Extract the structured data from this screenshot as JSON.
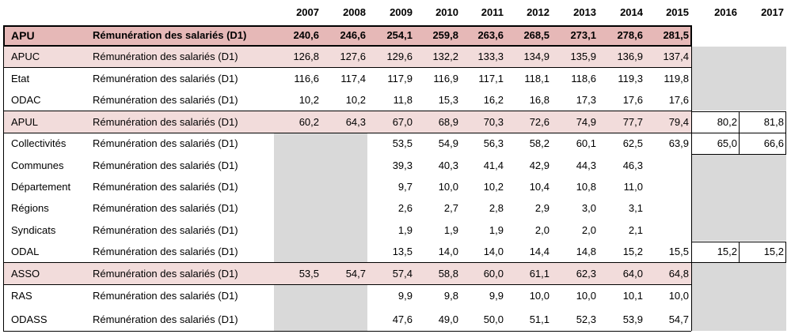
{
  "years": [
    "2007",
    "2008",
    "2009",
    "2010",
    "2011",
    "2012",
    "2013",
    "2014",
    "2015",
    "2016",
    "2017"
  ],
  "colors": {
    "apu_fill": "#e6b8b7",
    "section_fill": "#f2dcdb",
    "grey_fill": "#d9d9d9",
    "border": "#000000"
  },
  "rows": [
    {
      "entity": "APU",
      "label": "Rémunération des salariés (D1)",
      "values": [
        "240,6",
        "246,6",
        "254,1",
        "259,8",
        "263,6",
        "268,5",
        "273,1",
        "278,6",
        "281,5",
        "",
        ""
      ]
    },
    {
      "entity": "APUC",
      "label": "Rémunération des salariés (D1)",
      "values": [
        "126,8",
        "127,6",
        "129,6",
        "132,2",
        "133,3",
        "134,9",
        "135,9",
        "136,9",
        "137,4",
        "",
        ""
      ]
    },
    {
      "entity": "Etat",
      "label": "Rémunération des salariés (D1)",
      "values": [
        "116,6",
        "117,4",
        "117,9",
        "116,9",
        "117,1",
        "118,1",
        "118,6",
        "119,3",
        "119,8",
        "",
        ""
      ]
    },
    {
      "entity": "ODAC",
      "label": "Rémunération des salariés (D1)",
      "values": [
        "10,2",
        "10,2",
        "11,8",
        "15,3",
        "16,2",
        "16,8",
        "17,3",
        "17,6",
        "17,6",
        "",
        ""
      ]
    },
    {
      "entity": "APUL",
      "label": "Rémunération des salariés (D1)",
      "values": [
        "60,2",
        "64,3",
        "67,0",
        "68,9",
        "70,3",
        "72,6",
        "74,9",
        "77,7",
        "79,4",
        "80,2",
        "81,8"
      ]
    },
    {
      "entity": "Collectivités",
      "label": "Rémunération des salariés (D1)",
      "values": [
        "",
        "",
        "53,5",
        "54,9",
        "56,3",
        "58,2",
        "60,1",
        "62,5",
        "63,9",
        "65,0",
        "66,6"
      ]
    },
    {
      "entity": "Communes",
      "label": "Rémunération des salariés (D1)",
      "values": [
        "",
        "",
        "39,3",
        "40,3",
        "41,4",
        "42,9",
        "44,3",
        "46,3",
        "",
        "",
        ""
      ]
    },
    {
      "entity": "Département",
      "label": "Rémunération des salariés (D1)",
      "values": [
        "",
        "",
        "9,7",
        "10,0",
        "10,2",
        "10,4",
        "10,8",
        "11,0",
        "",
        "",
        ""
      ]
    },
    {
      "entity": "Régions",
      "label": "Rémunération des salariés (D1)",
      "values": [
        "",
        "",
        "2,6",
        "2,7",
        "2,8",
        "2,9",
        "3,0",
        "3,1",
        "",
        "",
        ""
      ]
    },
    {
      "entity": "Syndicats",
      "label": "Rémunération des salariés (D1)",
      "values": [
        "",
        "",
        "1,9",
        "1,9",
        "1,9",
        "2,0",
        "2,0",
        "2,1",
        "",
        "",
        ""
      ]
    },
    {
      "entity": "ODAL",
      "label": "Rémunération des salariés (D1)",
      "values": [
        "",
        "",
        "13,5",
        "14,0",
        "14,0",
        "14,4",
        "14,8",
        "15,2",
        "15,5",
        "15,2",
        "15,2"
      ]
    },
    {
      "entity": "ASSO",
      "label": "Rémunération des salariés (D1)",
      "values": [
        "53,5",
        "54,7",
        "57,4",
        "58,8",
        "60,0",
        "61,1",
        "62,3",
        "64,0",
        "64,8",
        "",
        ""
      ]
    },
    {
      "entity": "RAS",
      "label": "Rémunération des salariés (D1)",
      "values": [
        "",
        "",
        "9,9",
        "9,8",
        "9,9",
        "10,0",
        "10,0",
        "10,1",
        "10,0",
        "",
        ""
      ]
    },
    {
      "entity": "ODASS",
      "label": "Rémunération des salariés (D1)",
      "values": [
        "",
        "",
        "47,6",
        "49,0",
        "50,0",
        "51,1",
        "52,3",
        "53,9",
        "54,7",
        "",
        ""
      ]
    }
  ]
}
